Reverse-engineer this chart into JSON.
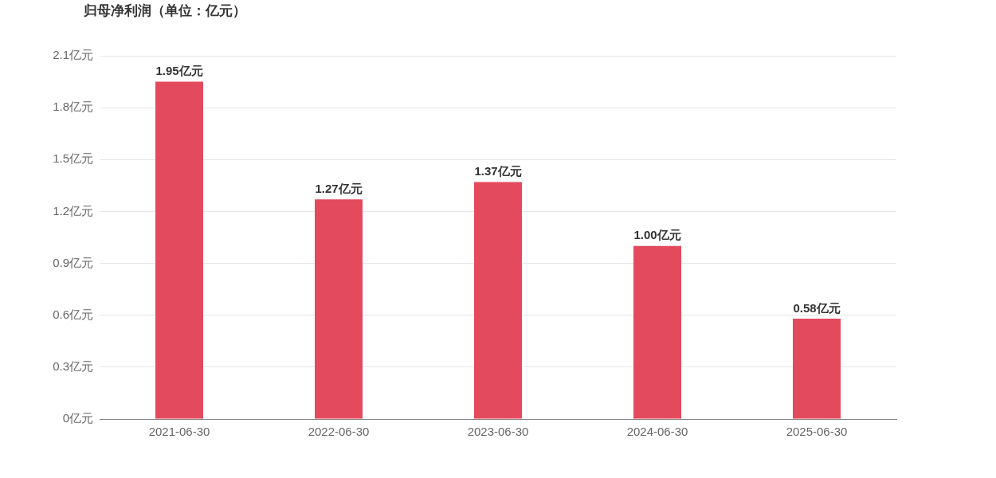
{
  "chart_data": {
    "type": "bar",
    "title": "归母净利润（单位：亿元）",
    "categories": [
      "2021-06-30",
      "2022-06-30",
      "2023-06-30",
      "2024-06-30",
      "2025-06-30"
    ],
    "values": [
      1.95,
      1.27,
      1.37,
      1.0,
      0.58
    ],
    "value_labels": [
      "1.95亿元",
      "1.27亿元",
      "1.37亿元",
      "1.00亿元",
      "0.58亿元"
    ],
    "color": "#e44a5e",
    "ylim": [
      0,
      2.1
    ],
    "yticks": [
      {
        "value": 0,
        "label": "0亿元"
      },
      {
        "value": 0.3,
        "label": "0.3亿元"
      },
      {
        "value": 0.6,
        "label": "0.6亿元"
      },
      {
        "value": 0.9,
        "label": "0.9亿元"
      },
      {
        "value": 1.2,
        "label": "1.2亿元"
      },
      {
        "value": 1.5,
        "label": "1.5亿元"
      },
      {
        "value": 1.8,
        "label": "1.8亿元"
      },
      {
        "value": 2.1,
        "label": "2.1亿元"
      }
    ],
    "grid": "y",
    "legend": false
  }
}
